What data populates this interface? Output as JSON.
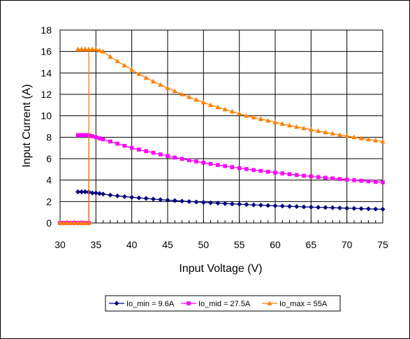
{
  "chart_data": {
    "type": "line",
    "xlabel": "Input Voltage (V)",
    "ylabel": "Input Current (A)",
    "xlim": [
      30,
      75
    ],
    "ylim": [
      0,
      18
    ],
    "xticks": [
      "30",
      "35",
      "40",
      "45",
      "50",
      "55",
      "60",
      "65",
      "70",
      "75"
    ],
    "yticks": [
      "0",
      "2",
      "4",
      "6",
      "8",
      "10",
      "12",
      "14",
      "16",
      "18"
    ],
    "grid": true,
    "legend_position": "bottom",
    "series": [
      {
        "name": "Io_min = 9.6A",
        "color": "#000080",
        "marker": "diamond",
        "x": [
          30,
          30.5,
          31,
          31.5,
          32,
          32.5,
          33,
          33.5,
          34,
          34,
          33.5,
          33,
          32.5,
          32.5,
          33,
          33.5,
          34,
          34.5,
          35,
          35.5,
          36,
          37,
          38,
          39,
          40,
          41,
          42,
          43,
          44,
          45,
          46,
          47,
          48,
          49,
          50,
          51,
          52,
          53,
          54,
          55,
          56,
          57,
          58,
          59,
          60,
          61,
          62,
          63,
          64,
          65,
          66,
          67,
          68,
          69,
          70,
          71,
          72,
          73,
          74,
          75
        ],
        "y": [
          0,
          0,
          0,
          0,
          0,
          0,
          0,
          0,
          0,
          2.9,
          2.9,
          2.9,
          2.9,
          2.9,
          2.9,
          2.9,
          2.85,
          2.8,
          2.8,
          2.75,
          2.7,
          2.6,
          2.53,
          2.46,
          2.4,
          2.34,
          2.29,
          2.23,
          2.18,
          2.13,
          2.09,
          2.04,
          2.0,
          1.96,
          1.92,
          1.88,
          1.85,
          1.81,
          1.78,
          1.75,
          1.72,
          1.69,
          1.66,
          1.63,
          1.6,
          1.58,
          1.55,
          1.53,
          1.5,
          1.48,
          1.46,
          1.44,
          1.42,
          1.4,
          1.38,
          1.36,
          1.34,
          1.32,
          1.3,
          1.28
        ]
      },
      {
        "name": "Io_mid = 27.5A",
        "color": "#FF00FF",
        "marker": "square",
        "x": [
          30,
          30.5,
          31,
          31.5,
          32,
          32.5,
          33,
          33.5,
          34,
          34,
          33.5,
          33,
          32.5,
          32.5,
          33,
          33.5,
          34,
          34.5,
          35,
          35.5,
          36,
          37,
          38,
          39,
          40,
          41,
          42,
          43,
          44,
          45,
          46,
          47,
          48,
          49,
          50,
          51,
          52,
          53,
          54,
          55,
          56,
          57,
          58,
          59,
          60,
          61,
          62,
          63,
          64,
          65,
          66,
          67,
          68,
          69,
          70,
          71,
          72,
          73,
          74,
          75
        ],
        "y": [
          0,
          0,
          0,
          0,
          0,
          0,
          0,
          0,
          0,
          8.2,
          8.2,
          8.2,
          8.2,
          8.2,
          8.2,
          8.2,
          8.2,
          8.1,
          8.0,
          7.9,
          7.8,
          7.6,
          7.4,
          7.2,
          7.0,
          6.85,
          6.7,
          6.55,
          6.4,
          6.25,
          6.1,
          5.98,
          5.86,
          5.74,
          5.62,
          5.51,
          5.41,
          5.31,
          5.21,
          5.12,
          5.03,
          4.94,
          4.86,
          4.78,
          4.7,
          4.63,
          4.55,
          4.48,
          4.41,
          4.35,
          4.28,
          4.22,
          4.16,
          4.1,
          4.05,
          3.99,
          3.94,
          3.89,
          3.84,
          3.8
        ]
      },
      {
        "name": "Io_max = 55A",
        "color": "#FF8000",
        "marker": "triangle",
        "x": [
          30,
          30.5,
          31,
          31.5,
          32,
          32.5,
          33,
          33.5,
          34,
          34,
          33.5,
          33,
          32.5,
          32.5,
          33,
          33.5,
          34,
          34.5,
          35,
          35.5,
          36,
          37,
          38,
          39,
          40,
          41,
          42,
          43,
          44,
          45,
          46,
          47,
          48,
          49,
          50,
          51,
          52,
          53,
          54,
          55,
          56,
          57,
          58,
          59,
          60,
          61,
          62,
          63,
          64,
          65,
          66,
          67,
          68,
          69,
          70,
          71,
          72,
          73,
          74,
          75
        ],
        "y": [
          0,
          0,
          0,
          0,
          0,
          0,
          0,
          0,
          0,
          16.2,
          16.2,
          16.2,
          16.2,
          16.2,
          16.2,
          16.2,
          16.2,
          16.2,
          16.2,
          16.1,
          16.0,
          15.5,
          15.1,
          14.7,
          14.3,
          13.9,
          13.55,
          13.2,
          12.9,
          12.6,
          12.3,
          12.0,
          11.75,
          11.5,
          11.25,
          11.0,
          10.8,
          10.6,
          10.4,
          10.2,
          10.0,
          9.85,
          9.7,
          9.55,
          9.4,
          9.25,
          9.1,
          8.97,
          8.84,
          8.71,
          8.58,
          8.46,
          8.34,
          8.22,
          8.11,
          8.0,
          7.9,
          7.8,
          7.7,
          7.6
        ]
      }
    ]
  }
}
